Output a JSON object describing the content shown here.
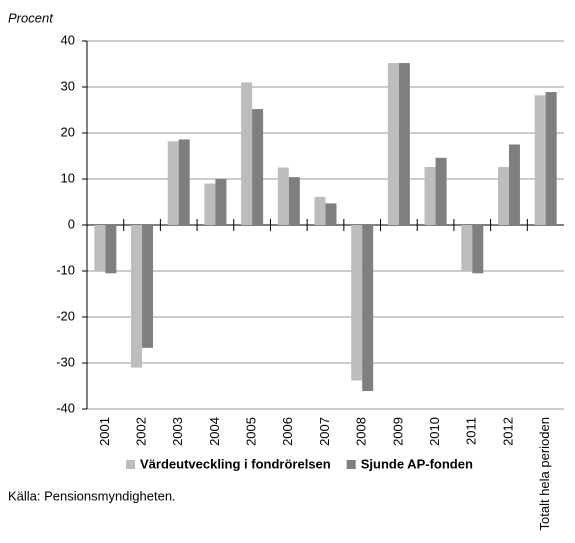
{
  "chart_data": {
    "type": "bar",
    "y_label": "Procent",
    "categories": [
      "2001",
      "2002",
      "2003",
      "2004",
      "2005",
      "2006",
      "2007",
      "2008",
      "2009",
      "2010",
      "2011",
      "2012",
      "Totalt hela perioden"
    ],
    "series": [
      {
        "name": "Värdeutveckling i fondrörelsen",
        "color": "#bdbdbd",
        "values": [
          -10,
          -31,
          18.2,
          9,
          31,
          12.5,
          6.1,
          -33.8,
          35.2,
          12.6,
          -10,
          12.6,
          28.2
        ]
      },
      {
        "name": "Sjunde AP-fonden",
        "color": "#7f7f7f",
        "values": [
          -10.5,
          -26.7,
          18.6,
          10,
          25.2,
          10.4,
          4.7,
          -36.1,
          35.2,
          14.6,
          -10.5,
          17.5,
          28.9
        ]
      }
    ],
    "ylim": [
      -40,
      40
    ],
    "yticks": [
      -40,
      -30,
      -20,
      -10,
      0,
      10,
      20,
      30,
      40
    ],
    "grid": true,
    "source": "Källa: Pensionsmyndigheten."
  }
}
